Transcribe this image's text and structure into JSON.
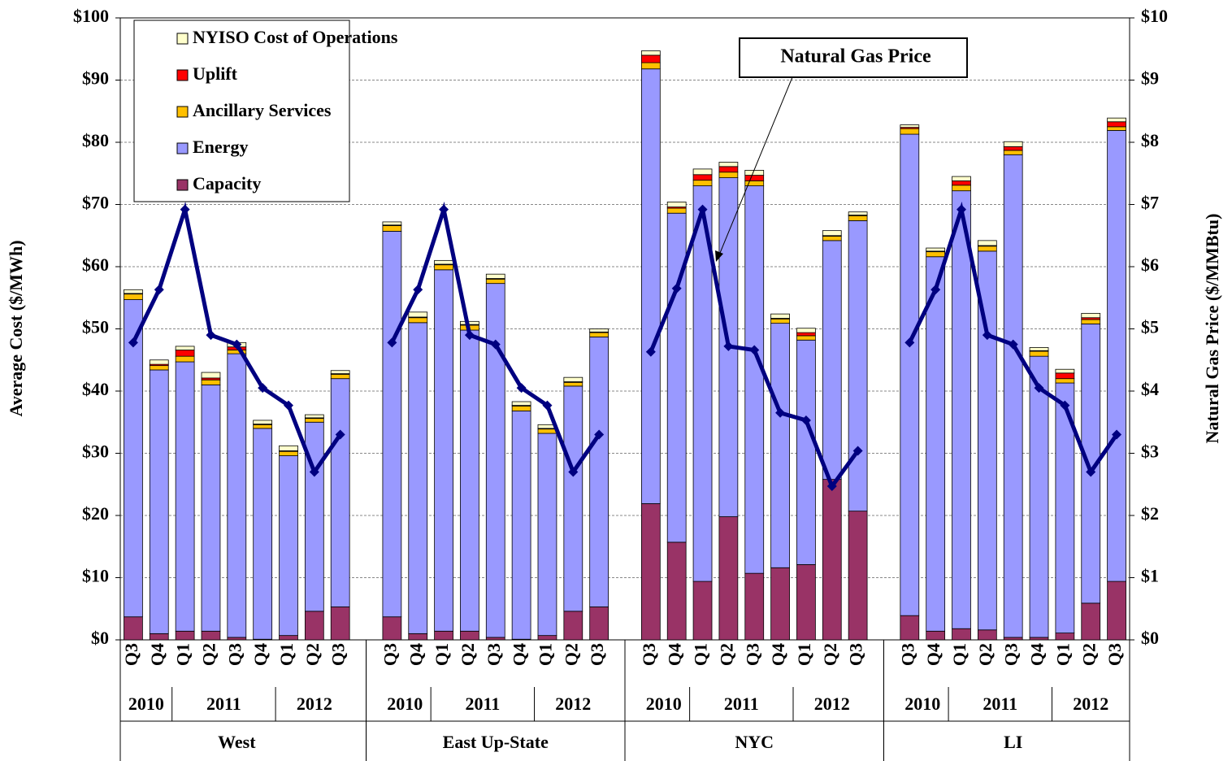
{
  "chart_data": {
    "type": "stacked_bar_line",
    "y_axis_label": "Average Cost ($/MWh)",
    "y2_axis_label": "Natural Gas Price ($/MMBtu)",
    "annotation": "Natural Gas Price",
    "legend": "upper left",
    "grid": true,
    "ylim": [
      0,
      100
    ],
    "yticks": [
      {
        "value": 0,
        "label": "$0"
      },
      {
        "value": 10,
        "label": "$10"
      },
      {
        "value": 20,
        "label": "$20"
      },
      {
        "value": 30,
        "label": "$30"
      },
      {
        "value": 40,
        "label": "$40"
      },
      {
        "value": 50,
        "label": "$50"
      },
      {
        "value": 60,
        "label": "$60"
      },
      {
        "value": 70,
        "label": "$70"
      },
      {
        "value": 80,
        "label": "$80"
      },
      {
        "value": 90,
        "label": "$90"
      },
      {
        "value": 100,
        "label": "$100"
      }
    ],
    "y2lim": [
      0,
      10
    ],
    "y2ticks": [
      {
        "value": 0,
        "label": "$0"
      },
      {
        "value": 1,
        "label": "$1"
      },
      {
        "value": 2,
        "label": "$2"
      },
      {
        "value": 3,
        "label": "$3"
      },
      {
        "value": 4,
        "label": "$4"
      },
      {
        "value": 5,
        "label": "$5"
      },
      {
        "value": 6,
        "label": "$6"
      },
      {
        "value": 7,
        "label": "$7"
      },
      {
        "value": 8,
        "label": "$8"
      },
      {
        "value": 9,
        "label": "$9"
      },
      {
        "value": 10,
        "label": "$10"
      }
    ],
    "groups": [
      {
        "name": "West",
        "years": [
          "2010",
          "2011",
          "2012"
        ]
      },
      {
        "name": "East Up-State",
        "years": [
          "2010",
          "2011",
          "2012"
        ]
      },
      {
        "name": "NYC",
        "years": [
          "2010",
          "2011",
          "2012"
        ]
      },
      {
        "name": "LI",
        "years": [
          "2010",
          "2011",
          "2012"
        ]
      }
    ],
    "categories": [
      "Q3",
      "Q4",
      "Q1",
      "Q2",
      "Q3",
      "Q4",
      "Q1",
      "Q2",
      "Q3",
      null,
      "Q3",
      "Q4",
      "Q1",
      "Q2",
      "Q3",
      "Q4",
      "Q1",
      "Q2",
      "Q3",
      null,
      "Q3",
      "Q4",
      "Q1",
      "Q2",
      "Q3",
      "Q4",
      "Q1",
      "Q2",
      "Q3",
      null,
      "Q3",
      "Q4",
      "Q1",
      "Q2",
      "Q3",
      "Q4",
      "Q1",
      "Q2",
      "Q3"
    ],
    "series": [
      {
        "name": "Capacity",
        "color": "#993366",
        "values": [
          3.7,
          1.0,
          1.4,
          1.4,
          0.4,
          0.1,
          0.7,
          4.6,
          5.3,
          null,
          3.7,
          1.0,
          1.4,
          1.4,
          0.4,
          0.1,
          0.7,
          4.6,
          5.3,
          null,
          21.9,
          15.7,
          9.4,
          19.8,
          10.7,
          11.6,
          12.1,
          25.8,
          20.7,
          null,
          3.9,
          1.4,
          1.8,
          1.6,
          0.4,
          0.4,
          1.1,
          5.9,
          9.4
        ]
      },
      {
        "name": "Energy",
        "color": "#9999ff",
        "values": [
          51.0,
          42.4,
          43.3,
          39.6,
          45.6,
          33.9,
          28.9,
          30.4,
          36.7,
          null,
          62.0,
          50.0,
          58.1,
          48.4,
          56.9,
          36.7,
          32.5,
          36.2,
          43.4,
          null,
          69.9,
          52.9,
          63.6,
          54.5,
          62.3,
          39.3,
          36.1,
          38.4,
          46.7,
          null,
          77.4,
          60.2,
          70.4,
          60.9,
          77.6,
          45.2,
          40.2,
          44.9,
          72.5
        ]
      },
      {
        "name": "Ancillary Services",
        "color": "#ffc000",
        "values": [
          0.9,
          0.7,
          0.9,
          0.8,
          0.6,
          0.6,
          0.7,
          0.6,
          0.7,
          null,
          0.9,
          0.8,
          0.8,
          0.8,
          0.7,
          0.8,
          0.7,
          0.6,
          0.7,
          null,
          1.0,
          0.8,
          0.9,
          0.9,
          0.8,
          0.7,
          0.7,
          0.7,
          0.8,
          null,
          0.9,
          0.8,
          0.9,
          0.8,
          0.7,
          0.8,
          0.7,
          0.7,
          0.6
        ]
      },
      {
        "name": "Uplift",
        "color": "#ff0000",
        "values": [
          0.1,
          0.2,
          1.0,
          0.3,
          0.5,
          0.1,
          0.1,
          0.1,
          0.1,
          null,
          0.1,
          0.1,
          0.1,
          0.1,
          0.1,
          0.1,
          0.1,
          0.1,
          0.1,
          null,
          1.2,
          0.2,
          0.9,
          0.9,
          0.9,
          0.1,
          0.5,
          0.1,
          0.1,
          null,
          0.2,
          0.1,
          0.7,
          0.1,
          0.6,
          0.1,
          0.9,
          0.3,
          0.8
        ]
      },
      {
        "name": "NYISO Cost of Operations",
        "color": "#ffffcc",
        "values": [
          0.6,
          0.7,
          0.6,
          0.9,
          0.7,
          0.6,
          0.8,
          0.5,
          0.5,
          null,
          0.5,
          0.8,
          0.6,
          0.5,
          0.7,
          0.6,
          0.6,
          0.7,
          0.5,
          null,
          0.7,
          0.8,
          0.9,
          0.7,
          0.8,
          0.7,
          0.7,
          0.8,
          0.5,
          null,
          0.4,
          0.5,
          0.7,
          0.8,
          0.8,
          0.5,
          0.6,
          0.7,
          0.6
        ]
      },
      {
        "name": "Natural Gas Price",
        "color": "#000080",
        "axis": "y2",
        "values": [
          4.78,
          5.63,
          6.92,
          4.9,
          4.75,
          4.05,
          3.77,
          2.7,
          3.3,
          null,
          4.78,
          5.63,
          6.92,
          4.9,
          4.75,
          4.05,
          3.77,
          2.7,
          3.3,
          null,
          4.63,
          5.65,
          6.92,
          4.72,
          4.66,
          3.65,
          3.53,
          2.47,
          3.04,
          null,
          4.78,
          5.63,
          6.92,
          4.9,
          4.75,
          4.05,
          3.77,
          2.7,
          3.3
        ]
      }
    ]
  }
}
